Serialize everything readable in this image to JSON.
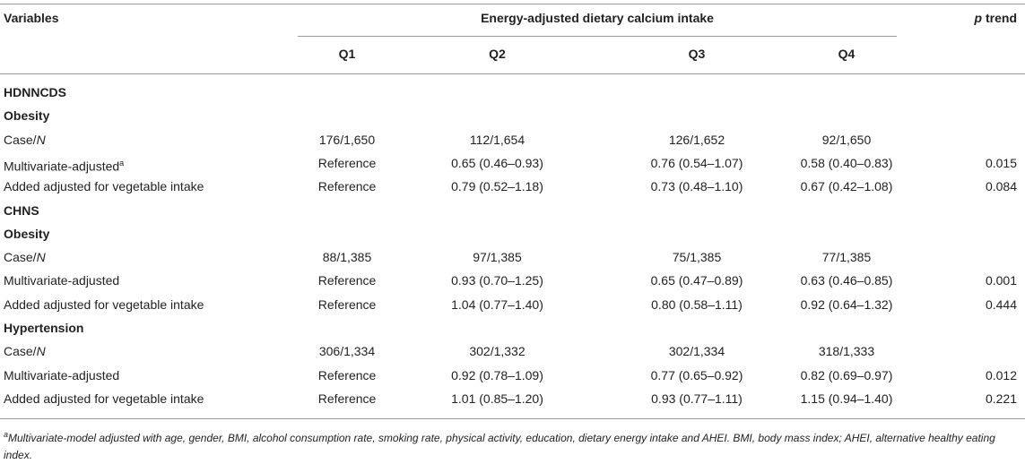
{
  "header": {
    "variables": "Variables",
    "group_title": "Energy-adjusted dietary calcium intake",
    "p_trend_p": "p",
    "p_trend_rest": " trend",
    "quartiles": [
      "Q1",
      "Q2",
      "Q3",
      "Q4"
    ]
  },
  "rows": [
    {
      "label": "HDNNCDS",
      "type": "section"
    },
    {
      "label": "Obesity",
      "type": "section"
    },
    {
      "label_main": "Case/",
      "label_italic": "N",
      "q1": "176/1,650",
      "q2": "112/1,654",
      "q3": "126/1,652",
      "q4": "92/1,650",
      "p": ""
    },
    {
      "label_main": "Multivariate-adjusted",
      "label_sup": "a",
      "q1": "Reference",
      "q2": "0.65 (0.46–0.93)",
      "q3": "0.76 (0.54–1.07)",
      "q4": "0.58 (0.40–0.83)",
      "p": "0.015"
    },
    {
      "label_main": "Added adjusted for vegetable intake",
      "q1": "Reference",
      "q2": "0.79 (0.52–1.18)",
      "q3": "0.73 (0.48–1.10)",
      "q4": "0.67 (0.42–1.08)",
      "p": "0.084"
    },
    {
      "label": "CHNS",
      "type": "section"
    },
    {
      "label": "Obesity",
      "type": "section"
    },
    {
      "label_main": "Case/",
      "label_italic": "N",
      "q1": "88/1,385",
      "q2": "97/1,385",
      "q3": "75/1,385",
      "q4": "77/1,385",
      "p": ""
    },
    {
      "label_main": "Multivariate-adjusted",
      "q1": "Reference",
      "q2": "0.93 (0.70–1.25)",
      "q3": "0.65 (0.47–0.89)",
      "q4": "0.63 (0.46–0.85)",
      "p": "0.001"
    },
    {
      "label_main": "Added adjusted for vegetable intake",
      "q1": "Reference",
      "q2": "1.04 (0.77–1.40)",
      "q3": "0.80 (0.58–1.11)",
      "q4": "0.92 (0.64–1.32)",
      "p": "0.444"
    },
    {
      "label": "Hypertension",
      "type": "section"
    },
    {
      "label_main": "Case/",
      "label_italic": "N",
      "q1": "306/1,334",
      "q2": "302/1,332",
      "q3": "302/1,334",
      "q4": "318/1,333",
      "p": ""
    },
    {
      "label_main": "Multivariate-adjusted",
      "q1": "Reference",
      "q2": "0.92 (0.78–1.09)",
      "q3": "0.77 (0.65–0.92)",
      "q4": "0.82 (0.69–0.97)",
      "p": "0.012"
    },
    {
      "label_main": "Added adjusted for vegetable intake",
      "q1": "Reference",
      "q2": "1.01 (0.85–1.20)",
      "q3": "0.93 (0.77–1.11)",
      "q4": "1.15 (0.94–1.40)",
      "p": "0.221"
    }
  ],
  "footnote": {
    "sup": "a",
    "text": "Multivariate-model adjusted with age, gender, BMI, alcohol consumption rate, smoking rate, physical activity, education, dietary energy intake and AHEI. BMI, body mass index; AHEI, alternative healthy eating index."
  }
}
